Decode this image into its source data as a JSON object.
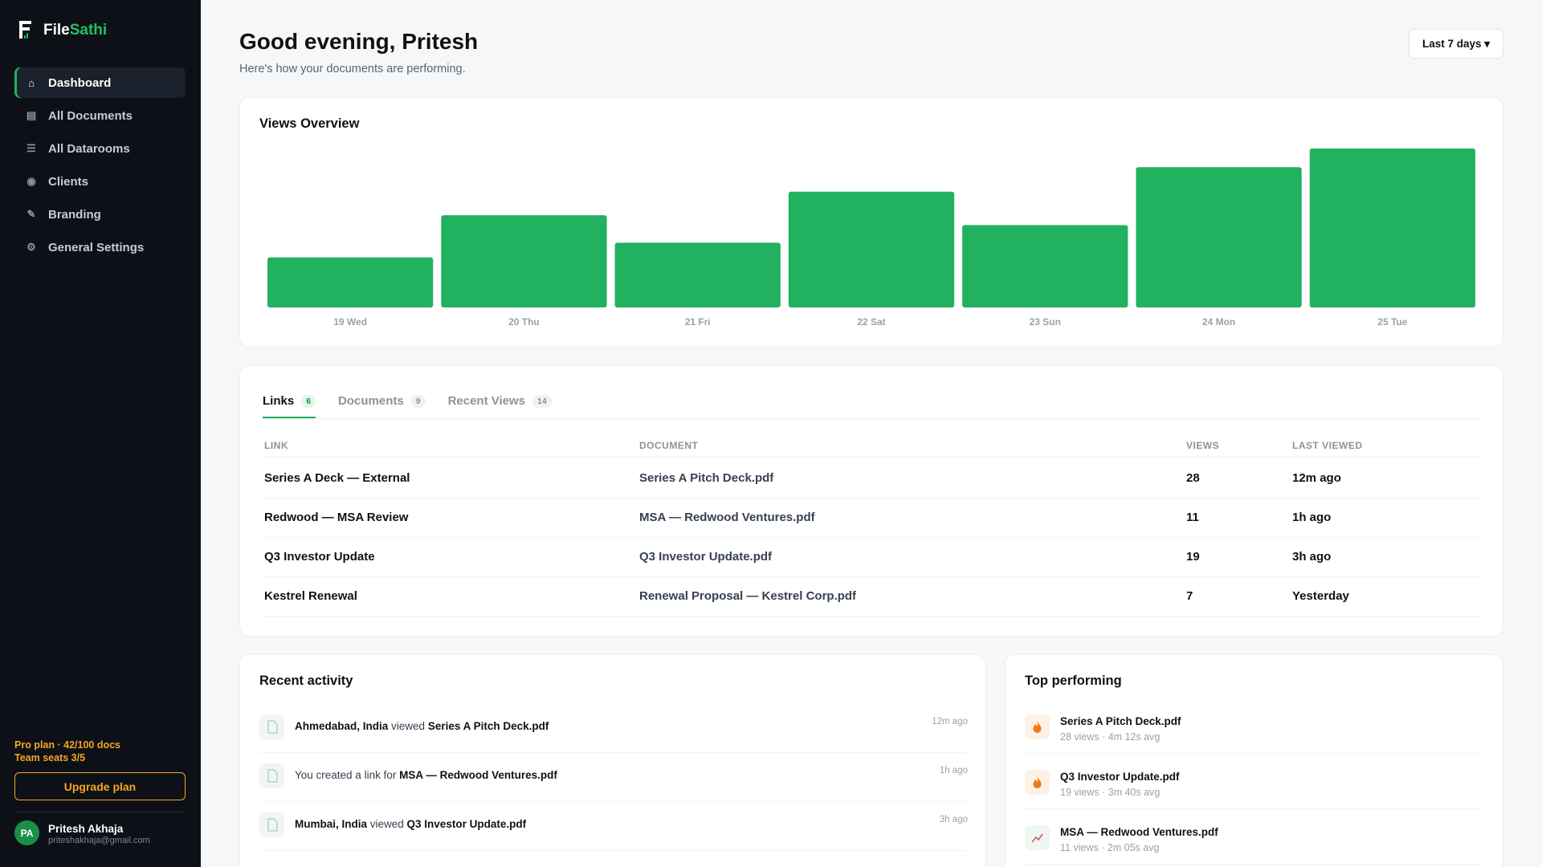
{
  "brand": {
    "first": "File",
    "second": "Sathi"
  },
  "nav": [
    {
      "icon": "⌂",
      "label": "Dashboard",
      "active": true
    },
    {
      "icon": "▤",
      "label": "All Documents",
      "active": false
    },
    {
      "icon": "☰",
      "label": "All Datarooms",
      "active": false
    },
    {
      "icon": "◉",
      "label": "Clients",
      "active": false
    },
    {
      "icon": "✎",
      "label": "Branding",
      "active": false
    },
    {
      "icon": "⚙",
      "label": "General Settings",
      "active": false
    }
  ],
  "plan": {
    "line1": "Pro plan · 42/100 docs",
    "line2": "Team seats 3/5",
    "button": "Upgrade plan"
  },
  "user": {
    "initials": "PA",
    "name": "Pritesh Akhaja",
    "email": "priteshakhaja@gmail.com"
  },
  "header": {
    "title": "Good evening, Pritesh",
    "subtitle": "Here's how your documents are performing.",
    "range": "Last 7 days ▾"
  },
  "chart_data": {
    "type": "bar",
    "title": "Views Overview",
    "categories": [
      "19 Wed",
      "20 Thu",
      "21 Fri",
      "22 Sat",
      "23 Sun",
      "24 Mon",
      "25 Tue"
    ],
    "values": [
      51,
      94,
      66,
      118,
      84,
      143,
      162
    ],
    "color": "#22b15f"
  },
  "tabs": [
    {
      "label": "Links",
      "count": 6,
      "active": true
    },
    {
      "label": "Documents",
      "count": 9,
      "active": false
    },
    {
      "label": "Recent Views",
      "count": 14,
      "active": false
    }
  ],
  "table": {
    "columns": [
      "LINK",
      "DOCUMENT",
      "VIEWS",
      "LAST VIEWED"
    ],
    "rows": [
      [
        "Series A Deck — External",
        "Series A Pitch Deck.pdf",
        28,
        "12m ago"
      ],
      [
        "Redwood — MSA Review",
        "MSA — Redwood Ventures.pdf",
        11,
        "1h ago"
      ],
      [
        "Q3 Investor Update",
        "Q3 Investor Update.pdf",
        19,
        "3h ago"
      ],
      [
        "Kestrel Renewal",
        "Renewal Proposal — Kestrel Corp.pdf",
        7,
        "Yesterday"
      ]
    ]
  },
  "activity": {
    "title": "Recent activity",
    "items": [
      {
        "parts": [
          {
            "text": "Ahmedabad, India",
            "bold": true
          },
          {
            "text": " viewed ",
            "bold": false
          },
          {
            "text": "Series A Pitch Deck.pdf",
            "bold": true
          }
        ],
        "time": "12m ago"
      },
      {
        "parts": [
          {
            "text": "You created a link for ",
            "bold": false
          },
          {
            "text": "MSA — Redwood Ventures.pdf",
            "bold": true
          }
        ],
        "time": "1h ago"
      },
      {
        "parts": [
          {
            "text": "Mumbai, India",
            "bold": true
          },
          {
            "text": " viewed ",
            "bold": false
          },
          {
            "text": "Q3 Investor Update.pdf",
            "bold": true
          }
        ],
        "time": "3h ago"
      }
    ]
  },
  "top": {
    "title": "Top performing",
    "items": [
      {
        "name": "Series A Pitch Deck.pdf",
        "meta": "28 views · 4m 12s avg"
      },
      {
        "name": "Q3 Investor Update.pdf",
        "meta": "19 views · 3m 40s avg"
      },
      {
        "name": "MSA — Redwood Ventures.pdf",
        "meta": "11 views · 2m 05s avg"
      }
    ]
  }
}
